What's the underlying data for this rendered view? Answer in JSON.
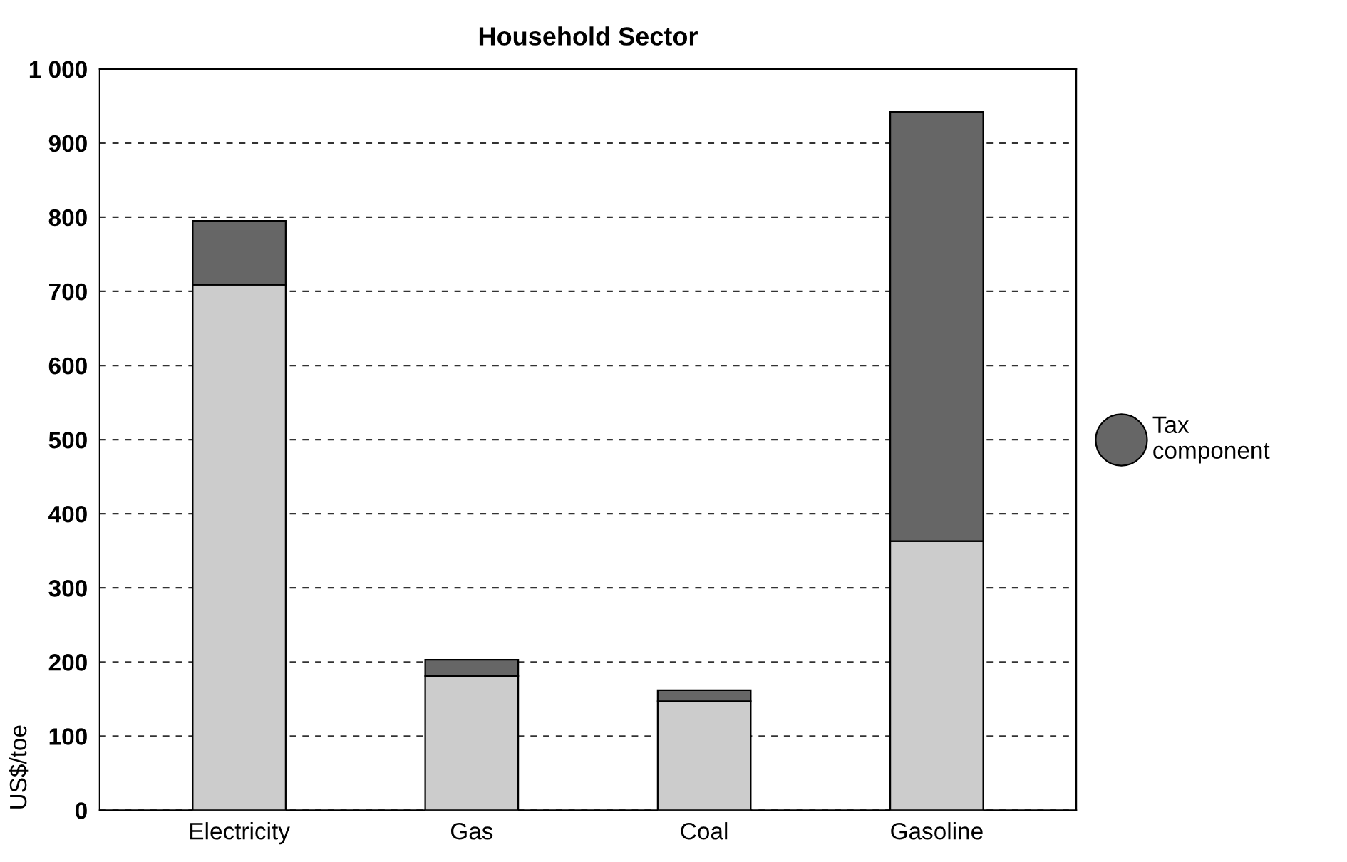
{
  "chart_data": {
    "type": "bar",
    "title": "Household Sector",
    "ylabel": "US$/toe",
    "categories": [
      "Electricity",
      "Gas",
      "Coal",
      "Gasoline"
    ],
    "stacked": true,
    "series": [
      {
        "color": "#cccccc",
        "values": [
          709,
          181,
          147,
          363
        ]
      },
      {
        "name": "Tax component",
        "color": "#666666",
        "values": [
          86,
          22,
          15,
          579
        ]
      }
    ],
    "ylim": [
      0,
      1000
    ],
    "yticks": [
      0,
      100,
      200,
      300,
      400,
      500,
      600,
      700,
      800,
      900,
      {
        "value": 1000,
        "label": "1 000"
      }
    ],
    "grid": "y",
    "legend": "right",
    "marker": "circle"
  }
}
